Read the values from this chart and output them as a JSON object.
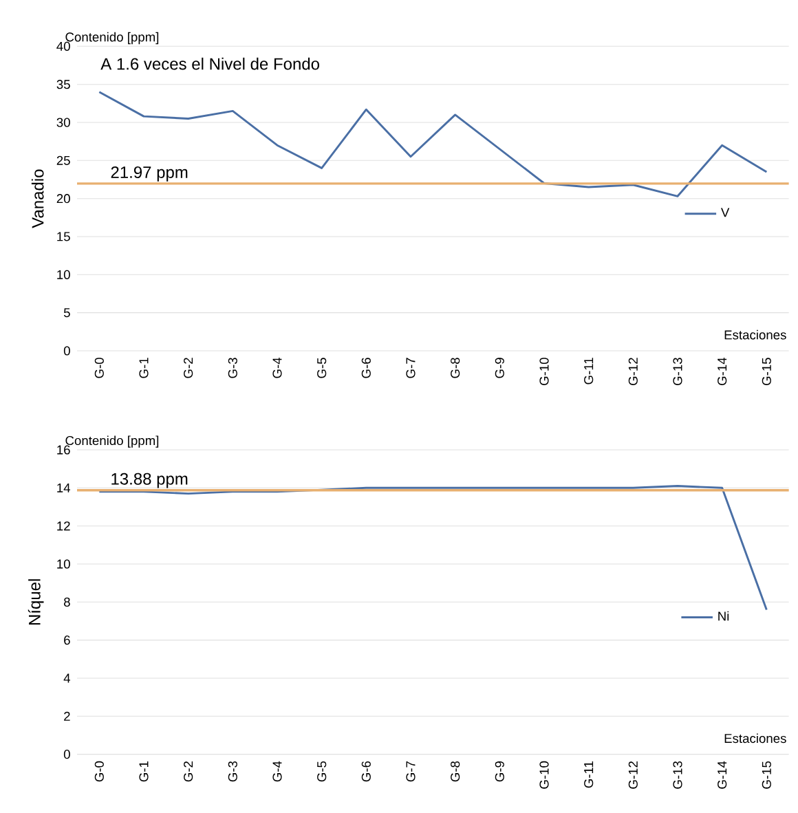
{
  "chart_data": [
    {
      "type": "line",
      "subtitle": "Contenido [ppm]",
      "ylabel": "Vanadio",
      "xlabel": "Estaciones",
      "annotations": [
        "A 1.6 veces el Nivel de Fondo"
      ],
      "categories": [
        "G-0",
        "G-1",
        "G-2",
        "G-3",
        "G-4",
        "G-5",
        "G-6",
        "G-7",
        "G-8",
        "G-9",
        "G-10",
        "G-11",
        "G-12",
        "G-13",
        "G-14",
        "G-15"
      ],
      "series": [
        {
          "name": "V",
          "color": "#4a6fa5",
          "values": [
            34,
            30.8,
            30.5,
            31.5,
            27,
            24,
            31.7,
            25.5,
            31,
            26.5,
            22,
            21.5,
            21.8,
            20.3,
            27,
            23.5
          ]
        }
      ],
      "ref_lines": [
        {
          "axis": "y",
          "value": 21.97,
          "label": "21.97 ppm",
          "color": "#e8b070"
        }
      ],
      "ylim": [
        0,
        40
      ],
      "yticks": [
        0,
        5,
        10,
        15,
        20,
        25,
        30,
        35,
        40
      ],
      "grid": "y",
      "legend": "right"
    },
    {
      "type": "line",
      "subtitle": "Contenido [ppm]",
      "ylabel": "Níquel",
      "xlabel": "Estaciones",
      "categories": [
        "G-0",
        "G-1",
        "G-2",
        "G-3",
        "G-4",
        "G-5",
        "G-6",
        "G-7",
        "G-8",
        "G-9",
        "G-10",
        "G-11",
        "G-12",
        "G-13",
        "G-14",
        "G-15"
      ],
      "series": [
        {
          "name": "Ni",
          "color": "#4a6fa5",
          "values": [
            13.8,
            13.8,
            13.7,
            13.8,
            13.8,
            13.9,
            14,
            14,
            14,
            14,
            14,
            14,
            14,
            14.1,
            14,
            7.6
          ]
        }
      ],
      "ref_lines": [
        {
          "axis": "y",
          "value": 13.88,
          "label": "13.88 ppm",
          "color": "#e8b070"
        }
      ],
      "ylim": [
        0,
        16
      ],
      "yticks": [
        0,
        2,
        4,
        6,
        8,
        10,
        12,
        14,
        16
      ],
      "grid": "y",
      "legend": "right"
    }
  ]
}
